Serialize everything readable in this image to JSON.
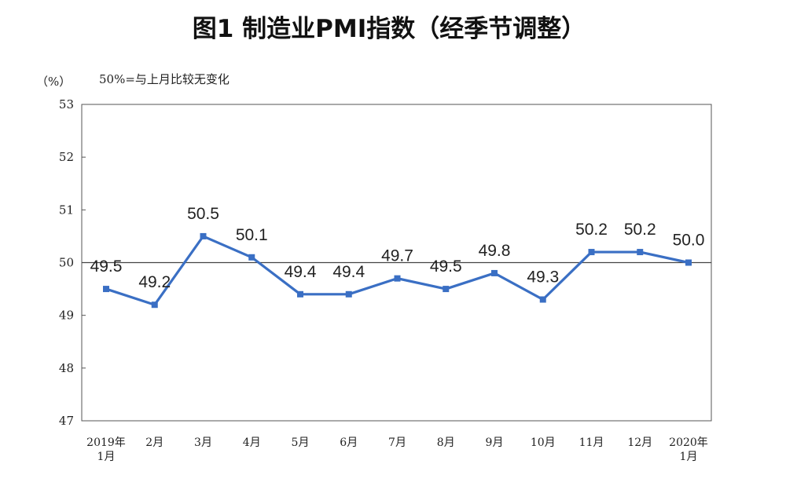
{
  "chart_data": {
    "type": "line",
    "title": "图1  制造业PMI指数（经季节调整）",
    "unit_label": "（%）",
    "reference_note": "50%=与上月比较无变化",
    "reference_value": 50,
    "ylim": [
      47,
      53
    ],
    "y_ticks": [
      47,
      48,
      49,
      50,
      51,
      52,
      53
    ],
    "categories": [
      [
        "2019年",
        "1月"
      ],
      [
        "2月"
      ],
      [
        "3月"
      ],
      [
        "4月"
      ],
      [
        "5月"
      ],
      [
        "6月"
      ],
      [
        "7月"
      ],
      [
        "8月"
      ],
      [
        "9月"
      ],
      [
        "10月"
      ],
      [
        "11月"
      ],
      [
        "12月"
      ],
      [
        "2020年",
        "1月"
      ]
    ],
    "series": [
      {
        "values": [
          49.5,
          49.2,
          50.5,
          50.1,
          49.4,
          49.4,
          49.7,
          49.5,
          49.8,
          49.3,
          50.2,
          50.2,
          50.0
        ],
        "labels": [
          "49.5",
          "49.2",
          "50.5",
          "50.1",
          "49.4",
          "49.4",
          "49.7",
          "49.5",
          "49.8",
          "49.3",
          "50.2",
          "50.2",
          "50.0"
        ],
        "color": "#3a6fc4"
      }
    ],
    "grid": false,
    "legend": "none"
  }
}
